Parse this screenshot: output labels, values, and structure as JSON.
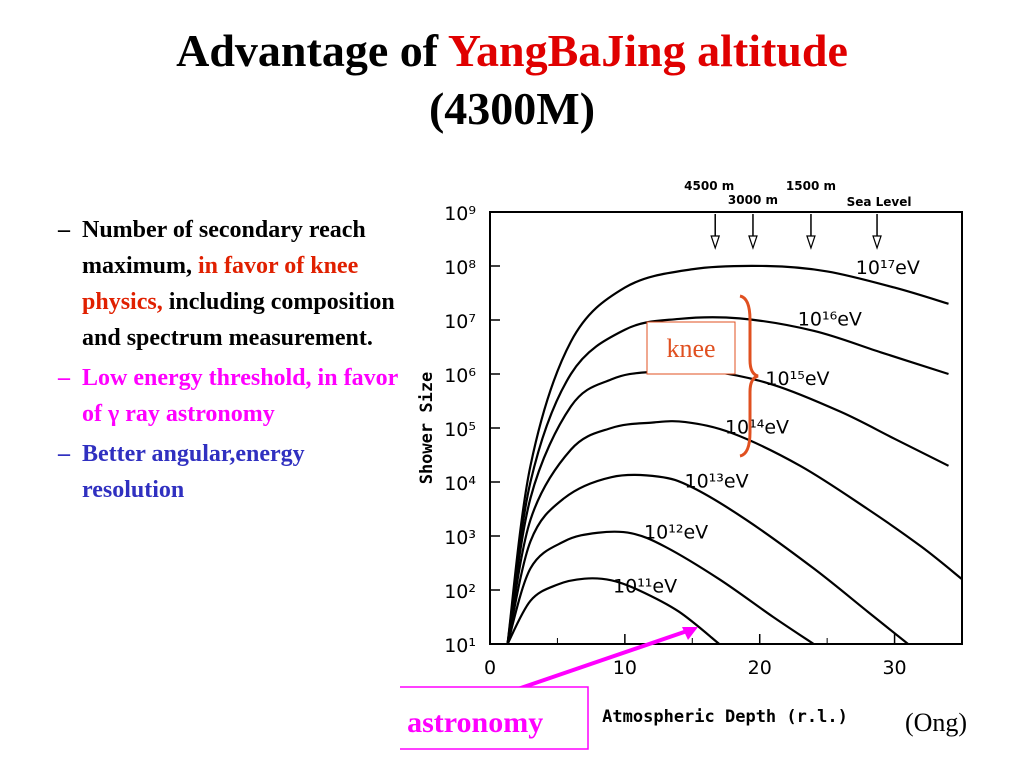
{
  "title": {
    "prefix": "Advantage of",
    "highlight": "YangBaJing altitude",
    "line2": "(4300M)"
  },
  "bullets": [
    {
      "dash": "–",
      "text": "Number of secondary reach maximum,",
      "highlight": "in favor of knee physics,",
      "tail": "including composition and spectrum measurement."
    },
    {
      "dash": "–",
      "text": "Low energy threshold, in favor of γ ray astronomy"
    },
    {
      "dash": "–",
      "text": "Better angular,energy resolution"
    }
  ],
  "colors": {
    "title_accent": "#e00000",
    "bullet_red": "#e02000",
    "magenta": "#ff00ff",
    "blue": "#3030c0",
    "knee": "#e05020"
  },
  "chart_data": {
    "type": "line",
    "xlabel": "Atmospheric Depth (r.l.)",
    "ylabel": "Shower Size",
    "xlim": [
      0,
      35
    ],
    "ylim_log10": [
      1,
      9
    ],
    "x_ticks": [
      "0",
      "10",
      "20",
      "30"
    ],
    "y_ticks": [
      "10⁹",
      "10⁸",
      "10⁷",
      "10⁶",
      "10⁵",
      "10⁴",
      "10³",
      "10²",
      "10¹"
    ],
    "series": [
      {
        "name": "10¹⁷eV",
        "points": [
          [
            1.3,
            1
          ],
          [
            3,
            4.3
          ],
          [
            6,
            6.6
          ],
          [
            10,
            7.6
          ],
          [
            15,
            7.94
          ],
          [
            20.5,
            8.0
          ],
          [
            25,
            7.9
          ],
          [
            30,
            7.6
          ],
          [
            34,
            7.3
          ]
        ]
      },
      {
        "name": "10¹⁶eV",
        "points": [
          [
            1.3,
            1
          ],
          [
            3,
            4.0
          ],
          [
            6,
            6.0
          ],
          [
            10,
            6.82
          ],
          [
            14,
            7.02
          ],
          [
            18.5,
            7.03
          ],
          [
            24,
            6.8
          ],
          [
            29,
            6.4
          ],
          [
            34,
            6.0
          ]
        ]
      },
      {
        "name": "10¹⁵eV",
        "points": [
          [
            1.3,
            1
          ],
          [
            3,
            3.7
          ],
          [
            6,
            5.4
          ],
          [
            9,
            5.9
          ],
          [
            12,
            6.04
          ],
          [
            16.5,
            6.04
          ],
          [
            21,
            5.8
          ],
          [
            26,
            5.3
          ],
          [
            30,
            4.8
          ],
          [
            34,
            4.3
          ]
        ]
      },
      {
        "name": "10¹⁴eV",
        "points": [
          [
            1.3,
            1
          ],
          [
            3,
            3.3
          ],
          [
            6,
            4.6
          ],
          [
            9,
            5.0
          ],
          [
            12,
            5.1
          ],
          [
            14.5,
            5.11
          ],
          [
            18,
            4.9
          ],
          [
            23,
            4.3
          ],
          [
            28,
            3.5
          ],
          [
            32,
            2.8
          ],
          [
            35,
            2.2
          ]
        ]
      },
      {
        "name": "10¹³eV",
        "points": [
          [
            1.3,
            1
          ],
          [
            3,
            2.9
          ],
          [
            5.5,
            3.7
          ],
          [
            9,
            4.09
          ],
          [
            12.5,
            4.1
          ],
          [
            15,
            3.9
          ],
          [
            19,
            3.3
          ],
          [
            24,
            2.4
          ],
          [
            28,
            1.6
          ],
          [
            31,
            1.0
          ]
        ]
      },
      {
        "name": "10¹²eV",
        "points": [
          [
            1.3,
            1
          ],
          [
            3,
            2.4
          ],
          [
            5.5,
            2.9
          ],
          [
            8,
            3.06
          ],
          [
            10.5,
            3.05
          ],
          [
            13,
            2.8
          ],
          [
            17,
            2.2
          ],
          [
            21,
            1.5
          ],
          [
            24,
            1.0
          ]
        ]
      },
      {
        "name": "10¹¹eV",
        "points": [
          [
            1.3,
            1
          ],
          [
            3,
            1.8
          ],
          [
            5,
            2.1
          ],
          [
            7,
            2.21
          ],
          [
            9,
            2.18
          ],
          [
            11,
            2.0
          ],
          [
            14,
            1.6
          ],
          [
            17,
            1.0
          ]
        ]
      }
    ],
    "altitude_labels": [
      "4500 m",
      "3000 m",
      "1500 m",
      "Sea Level"
    ],
    "altitude_depths": [
      16.7,
      19.5,
      23.8,
      28.7
    ],
    "annotations": {
      "knee": "knee",
      "gamma": "γ ray astronomy"
    }
  },
  "credit": "(Ong)"
}
